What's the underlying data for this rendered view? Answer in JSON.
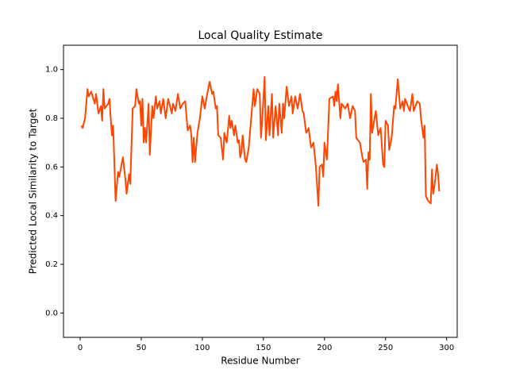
{
  "chart_data": {
    "type": "line",
    "title": "Local Quality Estimate",
    "x_label": "Residue Number",
    "y_label": "Predicted Local Similarity to Target",
    "xlim": [
      -13.65,
      308.65
    ],
    "ylim": [
      -0.1,
      1.1
    ],
    "xticks": [
      0,
      50,
      100,
      150,
      200,
      250,
      300
    ],
    "yticks": [
      {
        "value": 0,
        "label": "0.0"
      },
      0.2,
      0.4,
      0.6,
      0.8,
      {
        "value": 1,
        "label": "1.0"
      }
    ],
    "grid": false,
    "series": [
      {
        "name": null,
        "color": "#ff4500",
        "x": [
          1,
          2,
          4,
          6,
          7,
          9,
          12,
          13,
          15,
          17,
          18,
          19,
          20,
          23,
          24,
          25,
          26,
          27,
          29,
          31,
          32,
          35,
          37,
          38,
          40,
          41,
          43,
          45,
          46,
          48,
          49,
          50,
          51,
          52,
          53,
          54,
          56,
          57,
          59,
          60,
          62,
          63,
          65,
          66,
          68,
          70,
          72,
          75,
          76,
          78,
          80,
          82,
          84,
          86,
          88,
          90,
          91,
          92,
          93,
          94,
          96,
          98,
          100,
          102,
          104,
          106,
          108,
          109,
          111,
          112,
          113,
          115,
          117,
          118,
          120,
          122,
          123,
          124,
          126,
          127,
          129,
          130,
          131,
          132,
          133,
          135,
          136,
          138,
          142,
          143,
          145,
          147,
          148,
          149,
          151,
          152,
          154,
          155,
          157,
          158,
          160,
          162,
          163,
          165,
          166,
          167,
          169,
          171,
          173,
          174,
          176,
          178,
          180,
          182,
          183,
          185,
          187,
          189,
          191,
          193,
          195,
          196,
          198,
          199,
          200,
          202,
          204,
          207,
          208,
          209,
          210,
          211,
          213,
          214,
          217,
          219,
          221,
          223,
          225,
          226,
          229,
          231,
          232,
          234,
          235,
          236,
          237,
          238,
          239,
          242,
          244,
          246,
          248,
          249,
          250,
          252,
          253,
          255,
          257,
          258,
          260,
          262,
          264,
          265,
          266,
          269,
          270,
          272,
          273,
          276,
          278,
          279,
          281,
          282,
          283,
          285,
          287,
          288,
          289,
          290,
          292,
          293,
          294
        ],
        "values": [
          0.77,
          0.76,
          0.8,
          0.92,
          0.89,
          0.91,
          0.86,
          0.9,
          0.82,
          0.85,
          0.79,
          0.92,
          0.84,
          0.86,
          0.88,
          0.8,
          0.73,
          0.77,
          0.46,
          0.58,
          0.56,
          0.64,
          0.55,
          0.49,
          0.57,
          0.53,
          0.84,
          0.85,
          0.92,
          0.86,
          0.87,
          0.77,
          0.88,
          0.7,
          0.76,
          0.7,
          0.86,
          0.65,
          0.85,
          0.8,
          0.89,
          0.84,
          0.87,
          0.82,
          0.88,
          0.8,
          0.88,
          0.82,
          0.86,
          0.83,
          0.9,
          0.84,
          0.86,
          0.87,
          0.75,
          0.77,
          0.73,
          0.62,
          0.72,
          0.62,
          0.74,
          0.8,
          0.89,
          0.84,
          0.9,
          0.95,
          0.9,
          0.91,
          0.84,
          0.85,
          0.73,
          0.72,
          0.63,
          0.74,
          0.7,
          0.81,
          0.76,
          0.79,
          0.73,
          0.77,
          0.7,
          0.71,
          0.64,
          0.66,
          0.73,
          0.63,
          0.62,
          0.68,
          0.92,
          0.85,
          0.92,
          0.9,
          0.72,
          0.79,
          0.97,
          0.71,
          0.85,
          0.73,
          0.9,
          0.72,
          0.85,
          0.73,
          0.86,
          0.74,
          0.86,
          0.8,
          0.93,
          0.85,
          0.89,
          0.82,
          0.89,
          0.84,
          0.9,
          0.83,
          0.82,
          0.74,
          0.76,
          0.68,
          0.7,
          0.6,
          0.44,
          0.6,
          0.61,
          0.56,
          0.7,
          0.63,
          0.88,
          0.89,
          0.85,
          0.91,
          0.87,
          0.94,
          0.8,
          0.86,
          0.84,
          0.86,
          0.8,
          0.85,
          0.83,
          0.72,
          0.7,
          0.64,
          0.62,
          0.63,
          0.51,
          0.66,
          0.63,
          0.9,
          0.74,
          0.83,
          0.73,
          0.76,
          0.61,
          0.6,
          0.79,
          0.77,
          0.67,
          0.72,
          0.85,
          0.84,
          0.96,
          0.84,
          0.87,
          0.83,
          0.88,
          0.84,
          0.83,
          0.9,
          0.83,
          0.87,
          0.86,
          0.8,
          0.72,
          0.77,
          0.48,
          0.46,
          0.45,
          0.59,
          0.49,
          0.52,
          0.61,
          0.57,
          0.5
        ]
      }
    ]
  }
}
